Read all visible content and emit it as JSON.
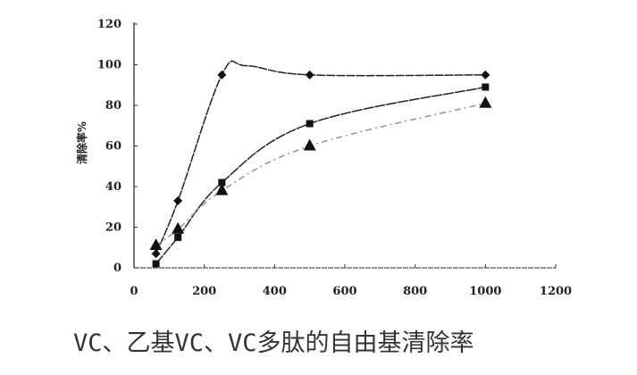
{
  "caption": "VC、乙基VC、VC多肽的自由基清除率",
  "chart_data": {
    "type": "line",
    "title": "VC、乙基VC、VC多肽的自由基清除率",
    "xlabel": "",
    "ylabel": "清除率%",
    "xlim": [
      0,
      1200
    ],
    "ylim": [
      0,
      120
    ],
    "xticks": [
      0,
      200,
      400,
      600,
      800,
      1000,
      1200
    ],
    "yticks": [
      0,
      20,
      40,
      60,
      80,
      100,
      120
    ],
    "grid": false,
    "legend": "none",
    "x": [
      62.5,
      125,
      250,
      500,
      1000
    ],
    "series": [
      {
        "name": "diamond series",
        "marker": "diamond",
        "line": "solid",
        "color": "#222222",
        "values": [
          7,
          33,
          95,
          95,
          95
        ]
      },
      {
        "name": "square series",
        "marker": "square",
        "line": "solid",
        "color": "#222222",
        "values": [
          2,
          15,
          42,
          71,
          89
        ]
      },
      {
        "name": "triangle series",
        "marker": "triangle",
        "line": "dashed",
        "color": "#9a9a9a",
        "values": [
          11,
          19,
          38,
          60,
          81
        ]
      }
    ]
  }
}
